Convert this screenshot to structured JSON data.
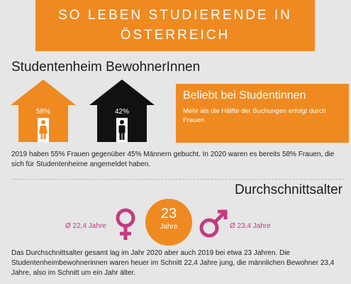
{
  "header": {
    "title_line1": "SO LEBEN STUDIERENDE IN",
    "title_line2": "ÖSTERREICH"
  },
  "section1": {
    "title": "Studentenheim BewohnerInnen",
    "house_female_pct": "58%",
    "house_male_pct": "42%",
    "callout_title": "Beliebt bei Studentinnen",
    "callout_text": "Mehr als die Hälfte der Buchungen erfolgt durch Frauen",
    "paragraph": "2019 haben 55% Frauen gegenüber 45% Männern gebucht. In 2020 waren es bereits 58% Frauen, die sich für Studentenheime angemeldet haben."
  },
  "section2": {
    "title": "Durchschnittsalter",
    "female_age": "Ø 22,4 Jahre",
    "male_age": "Ø 23,4 Jahre",
    "avg_number": "23",
    "avg_unit": "Jahre",
    "paragraph": "Das Durchschnittsalter gesamt lag im Jahr 2020 aber auch 2019 bei etwa 23 Jahren. Die Studentenheimbewohnerinnen waren heuer im Schnitt 22,4 Jahre jung, die männlichen Bewohner 23,4 Jahre, also im Schnitt um ein Jahr älter."
  },
  "colors": {
    "orange": "#ef8a21",
    "black": "#111111",
    "magenta": "#c23b7f",
    "background": "#e6e6e6"
  },
  "icons": [
    "house-icon",
    "woman-icon",
    "man-icon",
    "female-symbol-icon",
    "male-symbol-icon"
  ]
}
